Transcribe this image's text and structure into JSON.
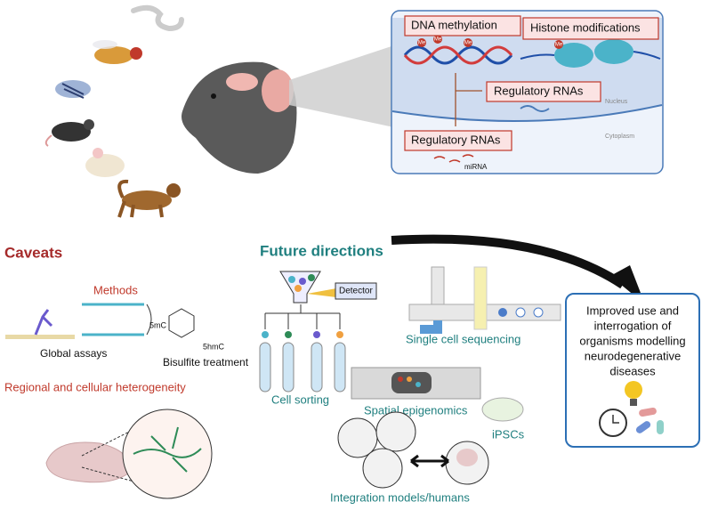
{
  "nucleus_panel": {
    "dna_methylation": "DNA methylation",
    "histone_modifications": "Histone modifications",
    "regulatory_rnas_nucleus": "Regulatory RNAs",
    "nucleus": "Nucleus",
    "cytoplasm": "Cytoplasm",
    "regulatory_rnas_cytoplasm": "Regulatory RNAs",
    "mirna": "miRNA",
    "me": "Me"
  },
  "caveats": {
    "title": "Caveats",
    "methods": "Methods",
    "global_assays": "Global  assays",
    "five_mc": "5mC",
    "five_hmc": "5hmC",
    "bisulfite": "Bisulfite treatment",
    "heterogeneity": "Regional and cellular heterogeneity"
  },
  "future_directions": {
    "title": "Future directions",
    "detector": "Detector",
    "cell_sorting": "Cell sorting",
    "single_cell": "Single cell sequencing",
    "spatial": "Spatial epigenomics",
    "ipscs": "iPSCs",
    "integration": "Integration models/humans"
  },
  "outcome": {
    "lines": [
      "Improved use and",
      "interrogation of",
      "organisms modelling",
      "neurodegenerative",
      "diseases"
    ]
  }
}
